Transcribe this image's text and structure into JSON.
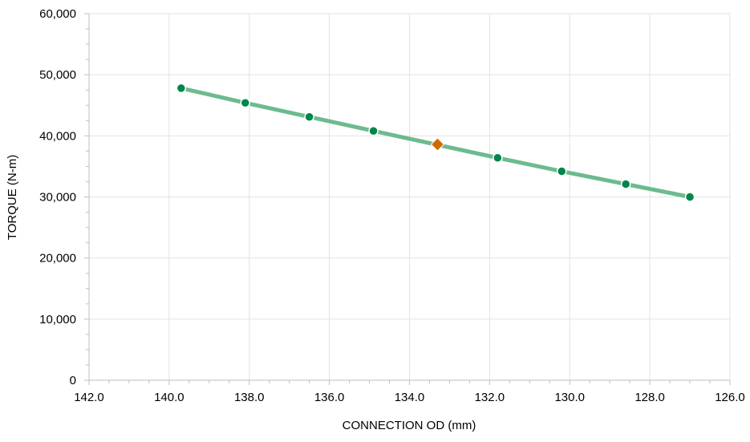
{
  "chart_data": {
    "type": "line",
    "title": "",
    "xlabel": "CONNECTION OD (mm)",
    "ylabel": "TORQUE (N-m)",
    "xlim": [
      142.0,
      126.0
    ],
    "ylim": [
      0,
      60000
    ],
    "x_reversed": true,
    "grid": true,
    "legend": "none",
    "x_ticks": [
      142.0,
      140.0,
      138.0,
      136.0,
      134.0,
      132.0,
      130.0,
      128.0,
      126.0
    ],
    "x_tick_labels": [
      "142.0",
      "140.0",
      "138.0",
      "136.0",
      "134.0",
      "132.0",
      "130.0",
      "128.0",
      "126.0"
    ],
    "y_ticks": [
      0,
      10000,
      20000,
      30000,
      40000,
      50000,
      60000
    ],
    "y_tick_labels": [
      "0",
      "10,000",
      "20,000",
      "30,000",
      "40,000",
      "50,000",
      "60,000"
    ],
    "series": [
      {
        "x": [
          139.7,
          138.1,
          136.5,
          134.9,
          131.8,
          130.2,
          128.6,
          127.0
        ],
        "y": [
          47800,
          45400,
          43100,
          40800,
          36400,
          34200,
          32100,
          30000
        ],
        "line_color": "#6cbb8f",
        "marker": "circle",
        "marker_color": "#00854a"
      },
      {
        "x": [
          133.3
        ],
        "y": [
          38600
        ],
        "marker": "diamond",
        "marker_color": "#d06a00"
      }
    ]
  }
}
